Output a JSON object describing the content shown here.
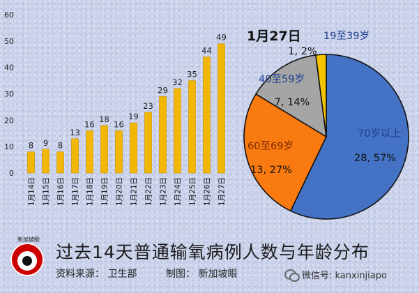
{
  "chart_data": [
    {
      "type": "bar",
      "categories": [
        "1月14日",
        "1月15日",
        "1月16日",
        "1月17日",
        "1月18日",
        "1月19日",
        "1月20日",
        "1月21日",
        "1月22日",
        "1月23日",
        "1月24日",
        "1月25日",
        "1月26日",
        "1月27日"
      ],
      "values": [
        8,
        9,
        8,
        13,
        16,
        18,
        16,
        19,
        23,
        29,
        32,
        35,
        44,
        49
      ],
      "ylim": [
        0,
        60
      ],
      "yticks": [
        0,
        10,
        20,
        30,
        40,
        50,
        60
      ],
      "bar_color": "#f2b705",
      "grid": false
    },
    {
      "type": "pie",
      "title": "1月27日",
      "slices": [
        {
          "label": "70岁以上",
          "value": 28,
          "percent": "57%",
          "text": "28, 57%",
          "color": "#4472c4"
        },
        {
          "label": "60至69岁",
          "value": 13,
          "percent": "27%",
          "text": "13, 27%",
          "color": "#f97a10"
        },
        {
          "label": "40至59岁",
          "value": 7,
          "percent": "14%",
          "text": "7, 14%",
          "color": "#a5a5a5"
        },
        {
          "label": "19至39岁",
          "value": 1,
          "percent": "2%",
          "text": "1, 2%",
          "color": "#f5c400"
        }
      ]
    }
  ],
  "footer": {
    "title": "过去14天普通输氧病例人数与年龄分布",
    "source": "资料来源： 卫生部",
    "credit": "制图： 新加坡眼",
    "logo_text": "新加坡眼",
    "wechat": "微信号: kanxinjiapo"
  }
}
